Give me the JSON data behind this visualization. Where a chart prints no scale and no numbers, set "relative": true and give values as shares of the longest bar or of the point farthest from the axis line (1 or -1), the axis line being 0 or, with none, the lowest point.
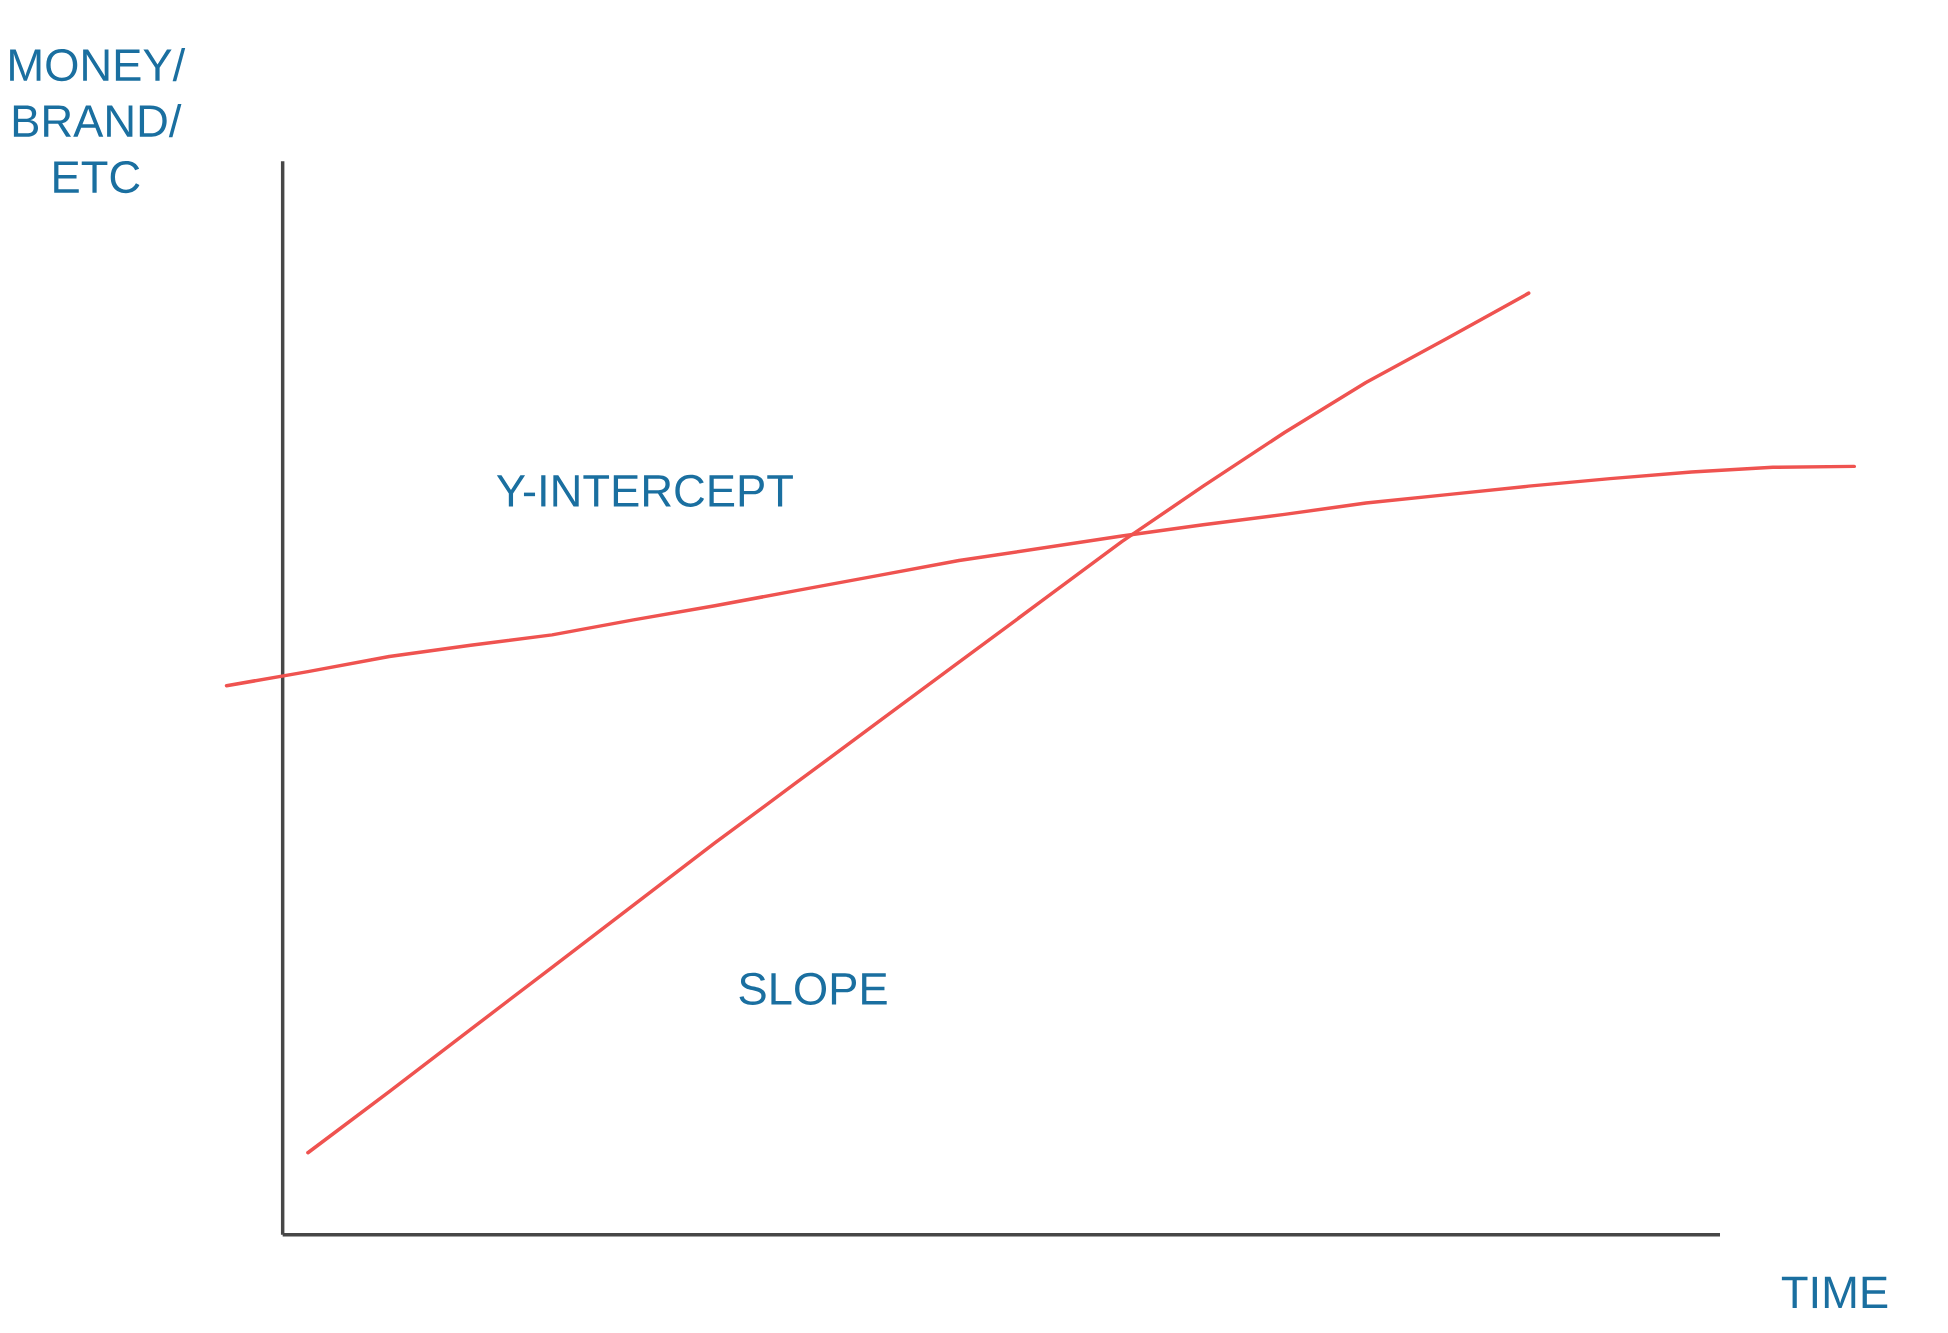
{
  "chart_data": {
    "type": "line",
    "relative": true,
    "xlabel": "TIME",
    "ylabel": "MONEY/ BRAND/ ETC",
    "categories": [
      null,
      null,
      null,
      null,
      null,
      null,
      null,
      null,
      null,
      null,
      null,
      null,
      null,
      null,
      null,
      null,
      null,
      null,
      null,
      null,
      null
    ],
    "series": [
      {
        "color": "#ef5350",
        "values": [
          0.583,
          0.598,
          0.614,
          0.626,
          0.637,
          0.653,
          0.668,
          0.684,
          0.7,
          0.716,
          0.729,
          0.742,
          0.754,
          0.765,
          0.777,
          0.786,
          0.795,
          0.803,
          0.81,
          0.815,
          0.816
        ]
      },
      {
        "color": "#ef5350",
        "values": [
          null,
          0.087,
          0.152,
          0.218,
          0.284,
          0.35,
          0.416,
          0.48,
          0.544,
          0.608,
          0.672,
          0.736,
          0.795,
          0.852,
          0.905,
          0.952,
          1.0,
          null,
          null,
          null,
          null
        ]
      }
    ],
    "annotations": [
      "Y-INTERCEPT",
      "SLOPE"
    ],
    "marker": "none",
    "line_style": "solid"
  }
}
